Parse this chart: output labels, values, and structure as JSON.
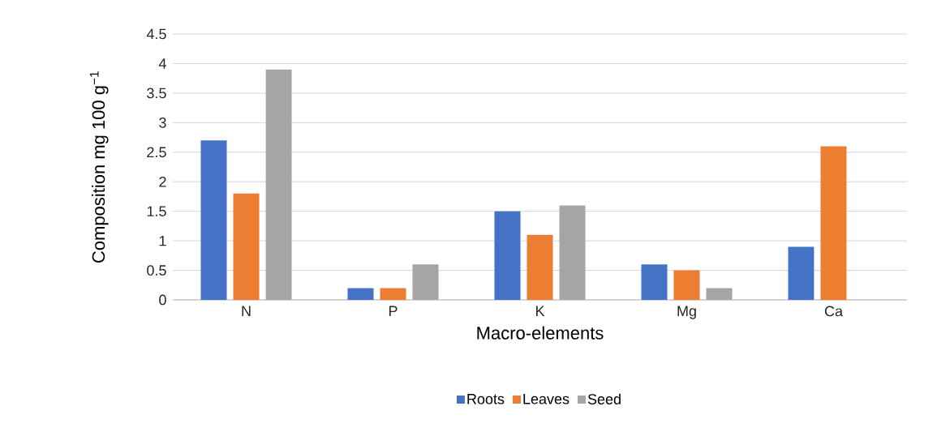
{
  "chart_data": {
    "type": "bar",
    "xlabel": "Macro-elements",
    "ylabel": "Composition mg 100 g$^{−1}$",
    "categories": [
      "N",
      "P",
      "K",
      "Mg",
      "Ca"
    ],
    "series": [
      {
        "name": "Roots",
        "color": "#4472c4",
        "values": [
          2.7,
          0.2,
          1.5,
          0.6,
          0.9
        ]
      },
      {
        "name": "Leaves",
        "color": "#ed7d31",
        "values": [
          1.8,
          0.2,
          1.1,
          0.5,
          2.6
        ]
      },
      {
        "name": "Seed",
        "color": "#a5a5a5",
        "values": [
          3.9,
          0.6,
          1.6,
          0.2,
          null
        ]
      }
    ],
    "ylim": [
      0,
      4.5
    ],
    "yticks": [
      0,
      0.5,
      1,
      1.5,
      2,
      2.5,
      3,
      3.5,
      4,
      4.5
    ],
    "grid": "y",
    "legend": "bottom"
  }
}
